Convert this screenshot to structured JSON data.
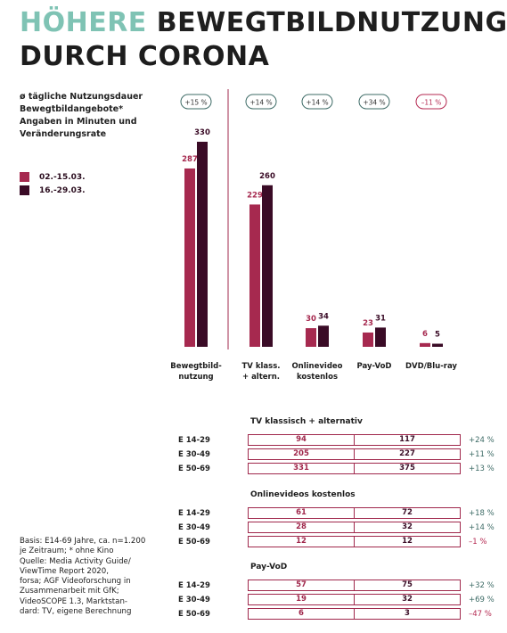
{
  "title": {
    "line1_accent": "Höhere",
    "line1_rest": " Bewegtbildnutzung",
    "line2": "durch Corona"
  },
  "subtitle": [
    "ø tägliche Nutzungsdauer",
    "Bewegtbildangebote*",
    "Angaben in Minuten und",
    "Veränderungsrate"
  ],
  "legend": [
    {
      "label": "02.-15.03.",
      "color": "#a6294f"
    },
    {
      "label": "16.-29.03.",
      "color": "#3a0b26"
    }
  ],
  "source": [
    "Basis: E14-69 Jahre, ca. n=1.200",
    "je Zeitraum; * ohne Kino",
    "Quelle: Media Activity Guide/",
    "ViewTime Report 2020,",
    "forsa; AGF Videoforschung in",
    "Zusammenarbeit mit GfK;",
    "VideoSCOPE 1.3, Marktstan-",
    "dard: TV, eigene Berechnung"
  ],
  "chart_data": [
    {
      "type": "bar",
      "categories": [
        [
          "Bewegtbild-",
          "nutzung"
        ],
        [
          "TV klass.",
          "+ altern."
        ],
        [
          "Onlinevideo",
          "kostenlos"
        ],
        [
          "Pay-VoD"
        ],
        [
          "DVD/Blu-ray"
        ]
      ],
      "series": [
        {
          "name": "02.-15.03.",
          "values": [
            287,
            229,
            30,
            23,
            6
          ]
        },
        {
          "name": "16.-29.03.",
          "values": [
            330,
            260,
            34,
            31,
            5
          ]
        }
      ],
      "changes": [
        "+15 %",
        "+14 %",
        "+14 %",
        "+34 %",
        "–11 %"
      ],
      "ylim": [
        0,
        340
      ]
    },
    {
      "type": "table",
      "tables": [
        {
          "title": "TV klassisch + alternativ",
          "rows": [
            {
              "age": "E 14-29",
              "v1": 94,
              "v2": 117,
              "change": "+24 %"
            },
            {
              "age": "E 30-49",
              "v1": 205,
              "v2": 227,
              "change": "+11 %"
            },
            {
              "age": "E 50-69",
              "v1": 331,
              "v2": 375,
              "change": "+13 %"
            }
          ]
        },
        {
          "title": "Onlinevideos kostenlos",
          "rows": [
            {
              "age": "E 14-29",
              "v1": 61,
              "v2": 72,
              "change": "+18 %"
            },
            {
              "age": "E 30-49",
              "v1": 28,
              "v2": 32,
              "change": "+14 %"
            },
            {
              "age": "E 50-69",
              "v1": 12,
              "v2": 12,
              "change": "–1 %"
            }
          ]
        },
        {
          "title": "Pay-VoD",
          "rows": [
            {
              "age": "E 14-29",
              "v1": 57,
              "v2": 75,
              "change": "+32 %"
            },
            {
              "age": "E 30-49",
              "v1": 19,
              "v2": 32,
              "change": "+69 %"
            },
            {
              "age": "E 50-69",
              "v1": 6,
              "v2": 3,
              "change": "–47 %"
            }
          ]
        }
      ]
    }
  ],
  "colors": {
    "accent": "#7fc3b4",
    "series1": "#a6294f",
    "series2": "#3a0b26",
    "positive_pill": "#3d6b66",
    "negative_pill": "#b42850",
    "separator": "#a0284c"
  }
}
